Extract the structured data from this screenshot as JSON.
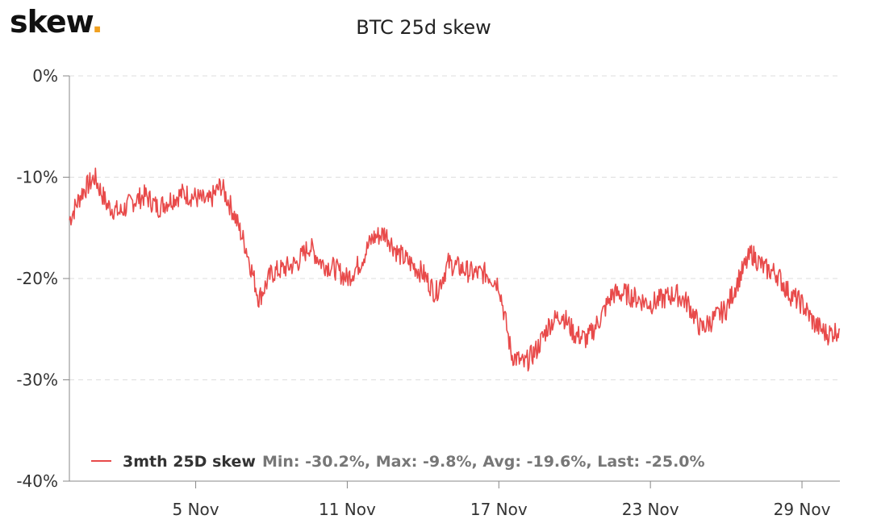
{
  "logo": {
    "text": "skew",
    "dot": ".",
    "dot_color": "#f0a020"
  },
  "chart_data": {
    "type": "line",
    "title": "BTC 25d skew",
    "xlabel": "",
    "ylabel": "",
    "ylim": [
      -40,
      0
    ],
    "yticks": [
      0,
      -10,
      -20,
      -30,
      -40
    ],
    "ytick_labels": [
      "0%",
      "-10%",
      "-20%",
      "-30%",
      "-40%"
    ],
    "x_range": [
      "2020-10-31",
      "2020-11-30T12:00"
    ],
    "xticks": [
      "2020-11-05",
      "2020-11-11",
      "2020-11-17",
      "2020-11-23",
      "2020-11-29"
    ],
    "xtick_labels": [
      "5 Nov",
      "11 Nov",
      "17 Nov",
      "23 Nov",
      "29 Nov"
    ],
    "grid": true,
    "legend_position": "bottom-left",
    "series_color": "#e84a4a",
    "series": [
      {
        "name": "3mth 25D skew",
        "stats": "Min: -30.2%, Max: -9.8%, Avg: -19.6%, Last: -25.0%",
        "x": [
          "2020-10-31T00:00",
          "2020-10-31T12:00",
          "2020-11-01T00:00",
          "2020-11-01T12:00",
          "2020-11-02T00:00",
          "2020-11-02T12:00",
          "2020-11-03T00:00",
          "2020-11-03T12:00",
          "2020-11-04T00:00",
          "2020-11-04T12:00",
          "2020-11-05T00:00",
          "2020-11-05T12:00",
          "2020-11-06T00:00",
          "2020-11-06T12:00",
          "2020-11-07T00:00",
          "2020-11-07T12:00",
          "2020-11-08T00:00",
          "2020-11-08T12:00",
          "2020-11-09T00:00",
          "2020-11-09T12:00",
          "2020-11-10T00:00",
          "2020-11-10T12:00",
          "2020-11-11T00:00",
          "2020-11-11T12:00",
          "2020-11-12T00:00",
          "2020-11-12T12:00",
          "2020-11-13T00:00",
          "2020-11-13T12:00",
          "2020-11-14T00:00",
          "2020-11-14T12:00",
          "2020-11-15T00:00",
          "2020-11-15T12:00",
          "2020-11-16T00:00",
          "2020-11-16T12:00",
          "2020-11-17T00:00",
          "2020-11-17T12:00",
          "2020-11-18T00:00",
          "2020-11-18T12:00",
          "2020-11-19T00:00",
          "2020-11-19T12:00",
          "2020-11-20T00:00",
          "2020-11-20T12:00",
          "2020-11-21T00:00",
          "2020-11-21T12:00",
          "2020-11-22T00:00",
          "2020-11-22T12:00",
          "2020-11-23T00:00",
          "2020-11-23T12:00",
          "2020-11-24T00:00",
          "2020-11-24T12:00",
          "2020-11-25T00:00",
          "2020-11-25T12:00",
          "2020-11-26T00:00",
          "2020-11-26T12:00",
          "2020-11-27T00:00",
          "2020-11-27T12:00",
          "2020-11-28T00:00",
          "2020-11-28T12:00",
          "2020-11-29T00:00",
          "2020-11-29T12:00",
          "2020-11-30T00:00",
          "2020-11-30T12:00"
        ],
        "values": [
          -14.2,
          -11.5,
          -10.0,
          -12.8,
          -13.5,
          -12.4,
          -11.8,
          -13.0,
          -12.2,
          -11.6,
          -12.0,
          -12.5,
          -10.8,
          -13.5,
          -17.0,
          -22.0,
          -19.5,
          -19.0,
          -18.5,
          -16.8,
          -18.5,
          -19.0,
          -20.0,
          -18.5,
          -16.0,
          -15.5,
          -17.5,
          -18.5,
          -19.5,
          -21.5,
          -18.5,
          -19.0,
          -19.5,
          -19.5,
          -20.5,
          -27.5,
          -28.5,
          -27.0,
          -24.5,
          -23.5,
          -25.5,
          -26.0,
          -24.0,
          -21.5,
          -21.5,
          -22.0,
          -22.5,
          -22.0,
          -21.5,
          -22.5,
          -25.0,
          -24.0,
          -23.0,
          -20.0,
          -17.5,
          -19.0,
          -19.5,
          -21.5,
          -22.5,
          -24.5,
          -25.5,
          -25.0
        ]
      }
    ]
  }
}
